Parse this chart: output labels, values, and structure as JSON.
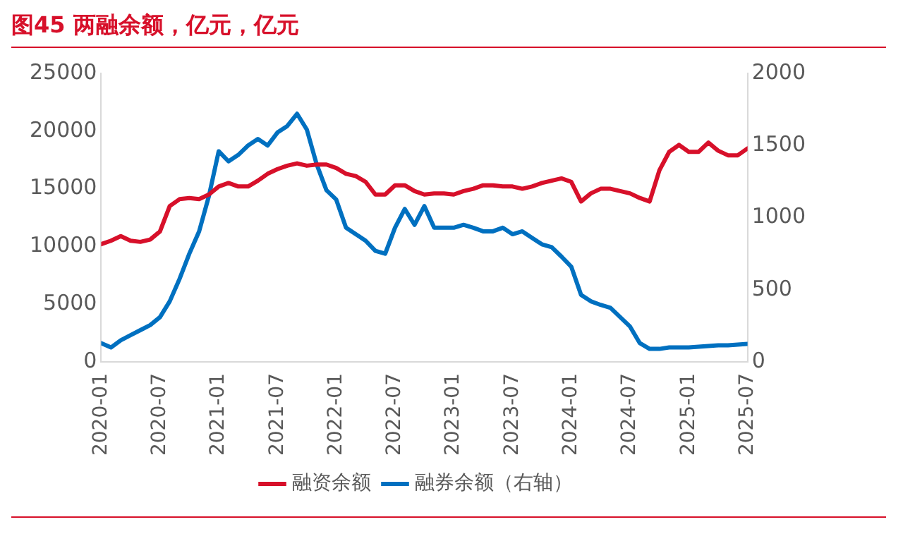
{
  "chart_data": {
    "type": "line",
    "title": "图45  两融余额，亿元，亿元",
    "x": [
      "2020-01",
      "2020-02",
      "2020-03",
      "2020-04",
      "2020-05",
      "2020-06",
      "2020-07",
      "2020-08",
      "2020-09",
      "2020-10",
      "2020-11",
      "2020-12",
      "2021-01",
      "2021-02",
      "2021-03",
      "2021-04",
      "2021-05",
      "2021-06",
      "2021-07",
      "2021-08",
      "2021-09",
      "2021-10",
      "2021-11",
      "2021-12",
      "2022-01",
      "2022-02",
      "2022-03",
      "2022-04",
      "2022-05",
      "2022-06",
      "2022-07",
      "2022-08",
      "2022-09",
      "2022-10",
      "2022-11",
      "2022-12",
      "2023-01",
      "2023-02",
      "2023-03",
      "2023-04",
      "2023-05",
      "2023-06",
      "2023-07",
      "2023-08",
      "2023-09",
      "2023-10",
      "2023-11",
      "2023-12",
      "2024-01",
      "2024-02",
      "2024-03",
      "2024-04",
      "2024-05",
      "2024-06",
      "2024-07",
      "2024-08",
      "2024-09",
      "2024-10",
      "2024-11",
      "2024-12",
      "2025-01",
      "2025-02",
      "2025-03",
      "2025-04",
      "2025-05",
      "2025-06",
      "2025-07"
    ],
    "series": [
      {
        "name": "融资余额",
        "color": "#d7102a",
        "values": [
          10200,
          10500,
          10900,
          10500,
          10400,
          10600,
          11300,
          13500,
          14100,
          14200,
          14100,
          14500,
          15200,
          15500,
          15200,
          15200,
          15700,
          16300,
          16700,
          17000,
          17200,
          17000,
          17100,
          17100,
          16800,
          16300,
          16100,
          15600,
          14500,
          14500,
          15300,
          15300,
          14800,
          14500,
          14600,
          14600,
          14500,
          14800,
          15000,
          15300,
          15300,
          15200,
          15200,
          15000,
          15200,
          15500,
          15700,
          15900,
          15600,
          13900,
          14600,
          15000,
          15000,
          14800,
          14600,
          14200,
          13900,
          16600,
          18200,
          18800,
          18200,
          18200,
          19000,
          18300,
          17900,
          17900,
          18500
        ]
      },
      {
        "name": "融券余额（右轴）",
        "color": "#0070c0",
        "axis": "y2",
        "values": [
          130,
          100,
          150,
          185,
          220,
          255,
          310,
          420,
          575,
          750,
          905,
          1150,
          1460,
          1390,
          1435,
          1500,
          1545,
          1500,
          1590,
          1635,
          1720,
          1610,
          1370,
          1190,
          1125,
          930,
          885,
          840,
          770,
          750,
          930,
          1060,
          950,
          1080,
          930,
          930,
          930,
          950,
          930,
          905,
          905,
          930,
          885,
          905,
          860,
          815,
          795,
          730,
          660,
          465,
          420,
          395,
          375,
          310,
          245,
          130,
          90,
          90,
          100,
          100,
          100,
          105,
          110,
          115,
          115,
          120,
          125
        ]
      }
    ],
    "xlim": [
      "2020-01",
      "2025-07"
    ],
    "xticks": [
      "2020-01",
      "2020-07",
      "2021-01",
      "2021-07",
      "2022-01",
      "2022-07",
      "2023-01",
      "2023-07",
      "2024-01",
      "2024-07",
      "2025-01",
      "2025-07"
    ],
    "ylim": [
      0,
      25000
    ],
    "yticks": [
      0,
      5000,
      10000,
      15000,
      20000,
      25000
    ],
    "y2lim": [
      0,
      2000
    ],
    "y2ticks": [
      0,
      500,
      1000,
      1500,
      2000
    ],
    "grid": false,
    "legend": "bottom",
    "marker": "none",
    "line_style": "solid"
  }
}
